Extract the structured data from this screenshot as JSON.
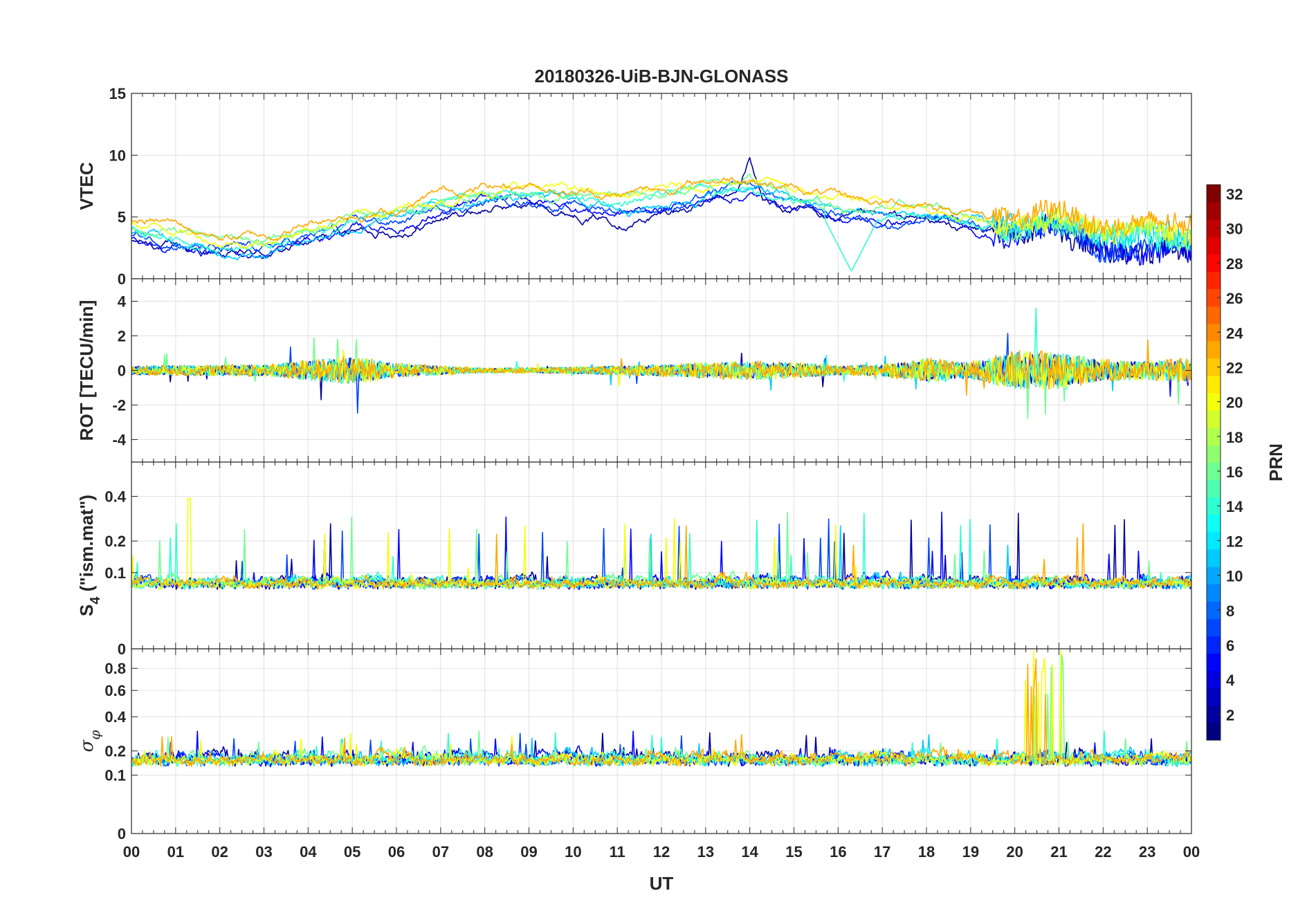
{
  "chart_data": {
    "type": "line",
    "title": "20180326-UiB-BJN-GLONASS",
    "xlabel": "UT",
    "x_ticks": [
      "00",
      "01",
      "02",
      "03",
      "04",
      "05",
      "06",
      "07",
      "08",
      "09",
      "10",
      "11",
      "12",
      "13",
      "14",
      "15",
      "16",
      "17",
      "18",
      "19",
      "20",
      "21",
      "22",
      "23",
      "00"
    ],
    "xlim": [
      0,
      24
    ],
    "grid": true,
    "colorbar": {
      "label": "PRN",
      "range": [
        1,
        32
      ],
      "ticks": [
        "2",
        "4",
        "6",
        "8",
        "10",
        "12",
        "14",
        "16",
        "18",
        "20",
        "22",
        "24",
        "26",
        "28",
        "30",
        "32"
      ],
      "colormap": "jet"
    },
    "series_prn": [
      2,
      5,
      7,
      11,
      14,
      16,
      20,
      23
    ],
    "panels": [
      {
        "id": "vtec",
        "ylabel": "VTEC",
        "ylim": [
          0,
          15
        ],
        "yticks": [
          "0",
          "5",
          "10",
          "15"
        ],
        "key_points": [
          {
            "x": [
              0,
              1,
              2,
              3,
              4,
              5,
              6,
              7,
              8,
              9,
              10,
              11,
              12,
              13,
              14,
              15,
              16,
              17,
              18,
              19,
              20,
              21,
              22,
              23,
              24
            ],
            "y": [
              3.8,
              3.5,
              2.6,
              2.6,
              3.6,
              4.6,
              4.8,
              6.0,
              6.6,
              6.9,
              6.4,
              6.0,
              6.3,
              7.0,
              7.6,
              6.4,
              5.6,
              5.2,
              5.3,
              4.7,
              4.0,
              4.6,
              3.3,
              3.6,
              3.0
            ]
          }
        ],
        "extremes": {
          "max": 10.4,
          "max_at": 14.0,
          "min": 0.6,
          "min_at": 16.3
        }
      },
      {
        "id": "rot",
        "ylabel": "ROT [TECU/min]",
        "ylim": [
          -5.3,
          5.3
        ],
        "yticks": [
          "-4",
          "-2",
          "0",
          "2",
          "4"
        ],
        "activity": [
          {
            "x": [
              0,
              3,
              5,
              6,
              8,
              10,
              12,
              14,
              15,
              16,
              17,
              18,
              19,
              20,
              21,
              22,
              23,
              24
            ],
            "amp": [
              0.4,
              0.5,
              1.2,
              0.6,
              0.2,
              0.3,
              0.5,
              0.8,
              0.7,
              0.4,
              0.5,
              1.0,
              0.7,
              1.6,
              1.5,
              0.9,
              0.8,
              1.0
            ]
          }
        ]
      },
      {
        "id": "s4",
        "ylabel": "S4 (\"ism.mat\")",
        "ylabel_main": "S",
        "ylabel_sub": "4",
        "ylabel_rest": " (\"ism.mat\")",
        "ylim": [
          0,
          0.6
        ],
        "yscale": "sqrt",
        "yticks": [
          "0",
          "0.1",
          "0.2",
          "0.4"
        ],
        "baseline": 0.06,
        "peak": {
          "value": 0.39,
          "at": 1.3
        }
      },
      {
        "id": "sigma",
        "ylabel": "σφ",
        "ylabel_main": "σ",
        "ylabel_sub": "φ",
        "ylim": [
          0,
          1
        ],
        "yscale": "sqrt",
        "yticks": [
          "0",
          "0.1",
          "0.2",
          "0.4",
          "0.6",
          "0.8"
        ],
        "baseline": 0.13,
        "peak": {
          "value": 1.0,
          "at": 20.7
        }
      }
    ]
  }
}
